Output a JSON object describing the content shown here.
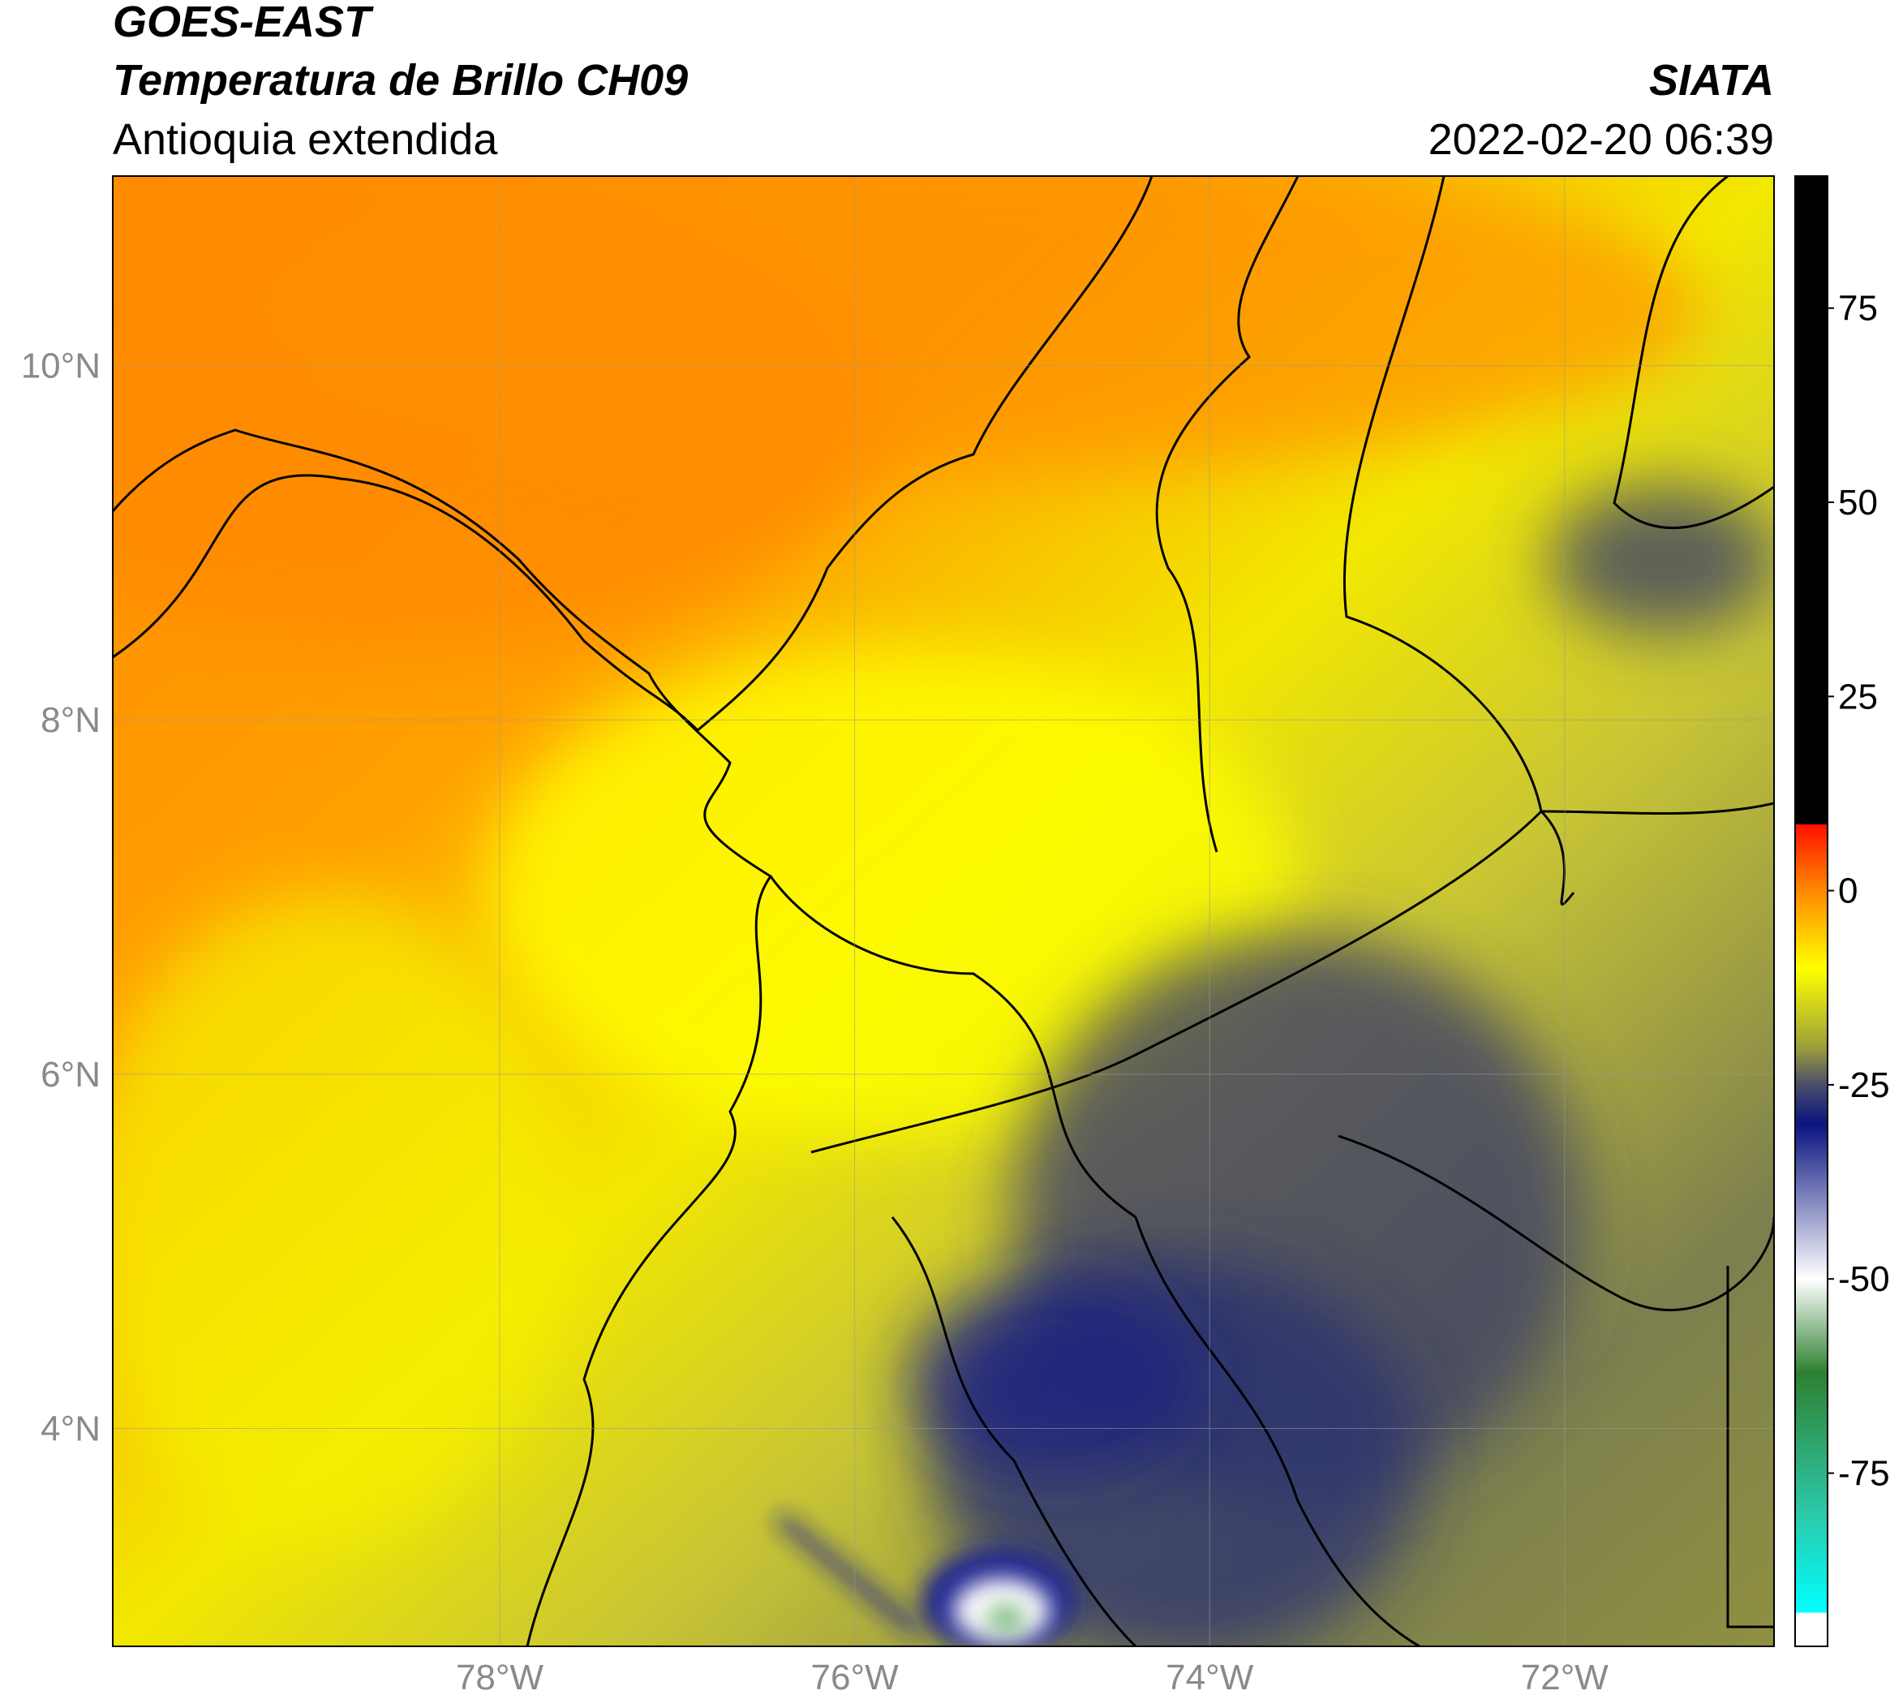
{
  "header": {
    "title": "GOES-EAST",
    "subtitle": "Temperatura de Brillo CH09",
    "region": "Antioquia extendida",
    "source": "SIATA",
    "datetime": "2022-02-20 06:39"
  },
  "map": {
    "xlim": [
      -80.18,
      -70.82
    ],
    "ylim": [
      2.77,
      11.07
    ],
    "xticks": [
      {
        "value": -78,
        "label": "78°W"
      },
      {
        "value": -76,
        "label": "76°W"
      },
      {
        "value": -74,
        "label": "74°W"
      },
      {
        "value": -72,
        "label": "72°W"
      }
    ],
    "yticks": [
      {
        "value": 4,
        "label": "4°N"
      },
      {
        "value": 6,
        "label": "6°N"
      },
      {
        "value": 8,
        "label": "8°N"
      },
      {
        "value": 10,
        "label": "10°N"
      }
    ],
    "grid": true
  },
  "colorbar": {
    "lim": [
      -97.3,
      92
    ],
    "ticks": [
      -75,
      -50,
      -25,
      0,
      25,
      50,
      75
    ]
  }
}
